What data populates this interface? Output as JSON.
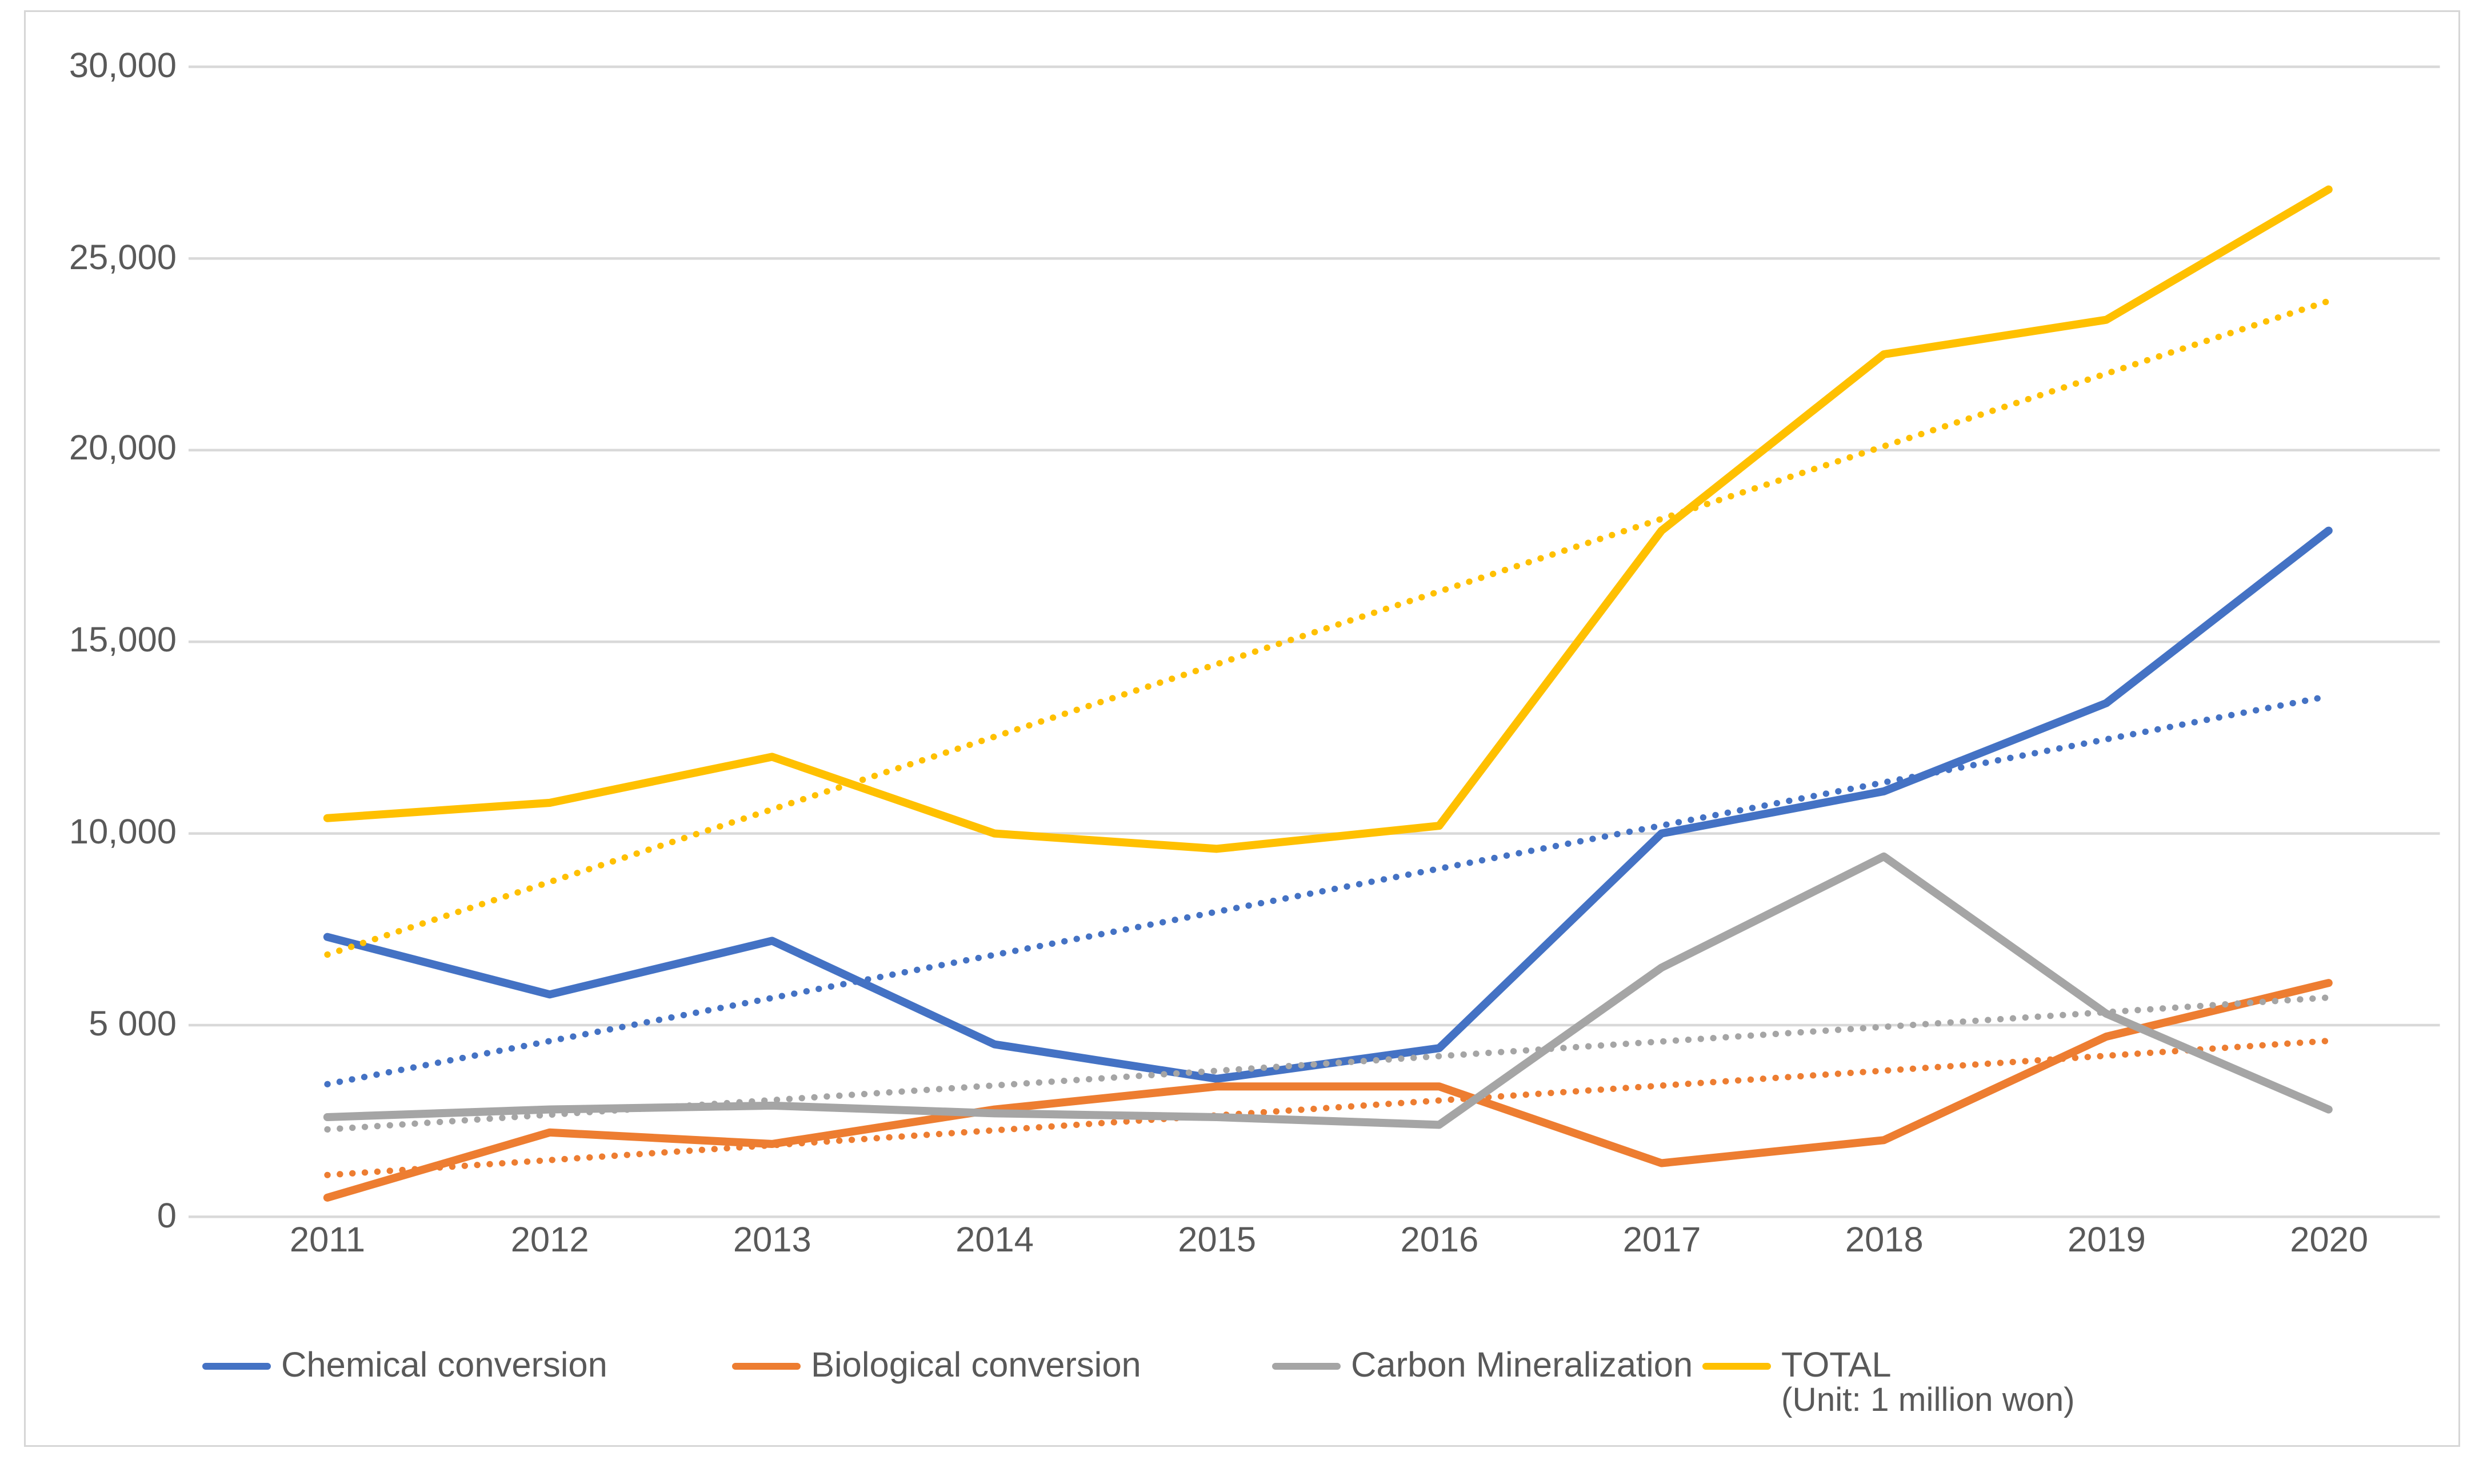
{
  "chart_data": {
    "type": "line",
    "title": "",
    "unit_note": "(Unit: 1 million won)",
    "categories": [
      2011,
      2012,
      2013,
      2014,
      2015,
      2016,
      2017,
      2018,
      2019,
      2020
    ],
    "series": [
      {
        "name": "Chemical conversion",
        "color": "#4472C4",
        "values": [
          7300,
          5800,
          7200,
          4500,
          3600,
          4400,
          10000,
          11100,
          13400,
          17900
        ],
        "trendline": {
          "style": "dotted-linear",
          "start": 3460,
          "end": 13580
        }
      },
      {
        "name": "Biological conversion",
        "color": "#ED7D31",
        "values": [
          500,
          2200,
          1900,
          2800,
          3400,
          3400,
          1400,
          2000,
          4700,
          6100
        ],
        "trendline": {
          "style": "dotted-linear",
          "start": 1090,
          "end": 4590
        }
      },
      {
        "name": "Carbon Mineralization",
        "color": "#A5A5A5",
        "values": [
          2600,
          2800,
          2900,
          2700,
          2600,
          2400,
          6500,
          9400,
          5300,
          2800
        ],
        "trendline": {
          "style": "dotted-linear",
          "start": 2280,
          "end": 5720
        }
      },
      {
        "name": "TOTAL",
        "color": "#FFC000",
        "values": [
          10400,
          10800,
          12000,
          10000,
          9600,
          10200,
          17900,
          22500,
          23400,
          26800
        ],
        "trendline": {
          "style": "dotted-linear",
          "start": 6840,
          "end": 23890
        }
      }
    ],
    "ylim": [
      0,
      30000
    ],
    "ytick_step": 5000,
    "ytick_labels": [
      "0",
      "5 000",
      "10,000",
      "15,000",
      "20,000",
      "25,000",
      "30,000"
    ],
    "xtick_labels": [
      "2011",
      "2012",
      "2013",
      "2014",
      "2015",
      "2016",
      "2017",
      "2018",
      "2019",
      "2020"
    ],
    "grid": true,
    "legend_position": "bottom",
    "gridline_color": "#D9D9D9",
    "text_color": "#595959"
  }
}
